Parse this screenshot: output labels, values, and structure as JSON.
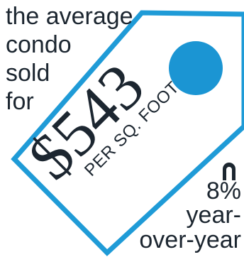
{
  "intro_lines": [
    "the average",
    "condo",
    "sold",
    "for"
  ],
  "price": "$543",
  "unit": "PER SQ. FOOT",
  "change": {
    "direction_icon": "arrow-up-icon",
    "value": "8%",
    "label_lines": [
      "year-",
      "over-year"
    ]
  },
  "colors": {
    "tag_outline": "#1f9bd7",
    "tag_hole": "#1b95d3",
    "text": "#1c2630"
  }
}
